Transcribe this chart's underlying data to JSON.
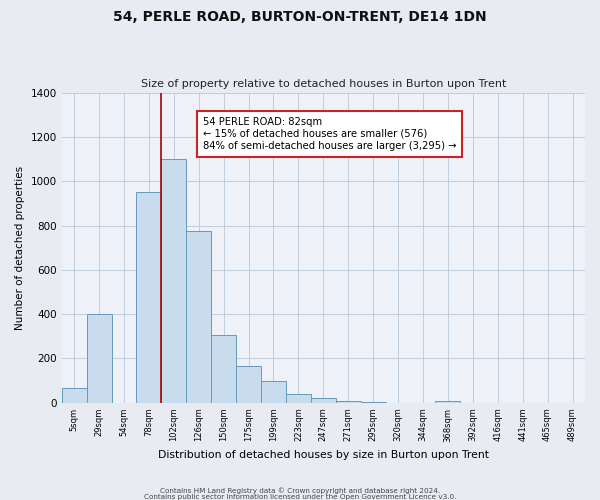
{
  "title": "54, PERLE ROAD, BURTON-ON-TRENT, DE14 1DN",
  "subtitle": "Size of property relative to detached houses in Burton upon Trent",
  "xlabel": "Distribution of detached houses by size in Burton upon Trent",
  "ylabel": "Number of detached properties",
  "bin_labels": [
    "5sqm",
    "29sqm",
    "54sqm",
    "78sqm",
    "102sqm",
    "126sqm",
    "150sqm",
    "175sqm",
    "199sqm",
    "223sqm",
    "247sqm",
    "271sqm",
    "295sqm",
    "320sqm",
    "344sqm",
    "368sqm",
    "392sqm",
    "416sqm",
    "441sqm",
    "465sqm",
    "489sqm"
  ],
  "bar_heights": [
    65,
    400,
    0,
    950,
    1100,
    775,
    305,
    165,
    100,
    40,
    20,
    10,
    5,
    0,
    0,
    10,
    0,
    0,
    0,
    0,
    0
  ],
  "bar_color": "#c8dcee",
  "bar_edge_color": "#6699bb",
  "vline_color": "#aa0000",
  "annotation_title": "54 PERLE ROAD: 82sqm",
  "annotation_line1": "← 15% of detached houses are smaller (576)",
  "annotation_line2": "84% of semi-detached houses are larger (3,295) →",
  "annotation_box_facecolor": "#ffffff",
  "annotation_box_edgecolor": "#cc2222",
  "ylim": [
    0,
    1400
  ],
  "footnote1": "Contains HM Land Registry data © Crown copyright and database right 2024.",
  "footnote2": "Contains public sector information licensed under the Open Government Licence v3.0.",
  "background_color": "#e8ecf2",
  "plot_background_color": "#eef2f8"
}
